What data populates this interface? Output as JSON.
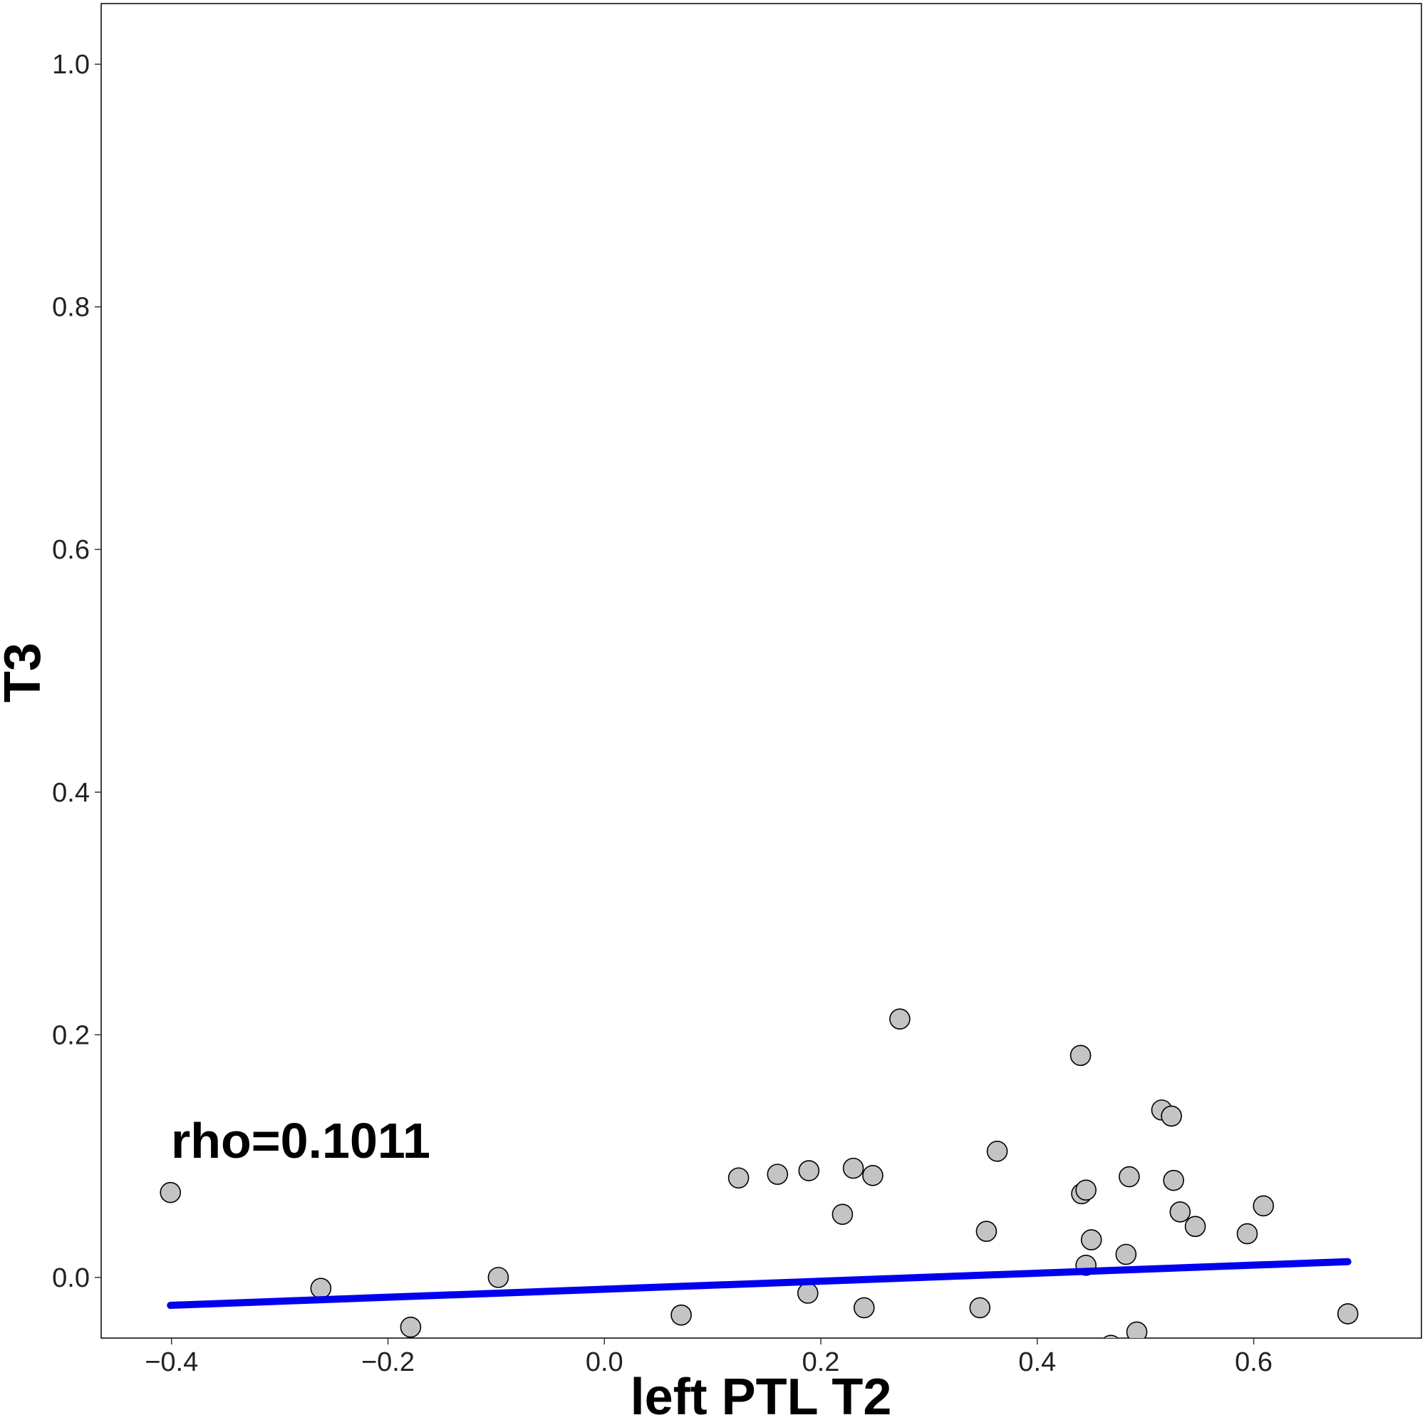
{
  "chart_data": {
    "type": "scatter",
    "title": "",
    "xlabel": "left PTL T2",
    "ylabel": "T3",
    "xlim": [
      -0.465,
      0.755
    ],
    "ylim": [
      -0.05,
      1.05
    ],
    "x_ticks": [
      -0.4,
      -0.2,
      0.0,
      0.2,
      0.4,
      0.6
    ],
    "x_tick_labels": [
      "−0.4",
      "−0.2",
      "0.0",
      "0.2",
      "0.4",
      "0.6"
    ],
    "y_ticks": [
      0.0,
      0.2,
      0.4,
      0.6,
      0.8,
      1.0
    ],
    "y_tick_labels": [
      "0.0",
      "0.2",
      "0.4",
      "0.6",
      "0.8",
      "1.0"
    ],
    "grid": false,
    "annotation": "rho=0.1011",
    "point_color": "#c4c4c4",
    "point_edge_color": "#000000",
    "line_color": "#0000ee",
    "points": [
      {
        "x": -0.401,
        "y": 0.07
      },
      {
        "x": -0.262,
        "y": -0.009
      },
      {
        "x": -0.179,
        "y": -0.041
      },
      {
        "x": -0.098,
        "y": 0.0
      },
      {
        "x": 0.071,
        "y": -0.031
      },
      {
        "x": 0.124,
        "y": 0.082
      },
      {
        "x": 0.16,
        "y": 0.085
      },
      {
        "x": 0.188,
        "y": -0.013
      },
      {
        "x": 0.189,
        "y": 0.088
      },
      {
        "x": 0.22,
        "y": 0.052
      },
      {
        "x": 0.23,
        "y": 0.09
      },
      {
        "x": 0.24,
        "y": -0.025
      },
      {
        "x": 0.248,
        "y": 0.084
      },
      {
        "x": 0.273,
        "y": 0.213
      },
      {
        "x": 0.347,
        "y": -0.025
      },
      {
        "x": 0.353,
        "y": 0.038
      },
      {
        "x": 0.363,
        "y": 0.104
      },
      {
        "x": 0.44,
        "y": 0.183
      },
      {
        "x": 0.441,
        "y": 0.069
      },
      {
        "x": 0.445,
        "y": 0.072
      },
      {
        "x": 0.445,
        "y": 0.01
      },
      {
        "x": 0.45,
        "y": 0.031
      },
      {
        "x": 0.468,
        "y": -0.056
      },
      {
        "x": 0.482,
        "y": 0.019
      },
      {
        "x": 0.485,
        "y": 0.083
      },
      {
        "x": 0.492,
        "y": -0.045
      },
      {
        "x": 0.515,
        "y": 0.138
      },
      {
        "x": 0.524,
        "y": 0.133
      },
      {
        "x": 0.526,
        "y": 0.08
      },
      {
        "x": 0.532,
        "y": 0.054
      },
      {
        "x": 0.546,
        "y": 0.042
      },
      {
        "x": 0.594,
        "y": 0.036
      },
      {
        "x": 0.609,
        "y": 0.059
      },
      {
        "x": 0.687,
        "y": -0.03
      }
    ],
    "fit_line": {
      "x": [
        -0.401,
        0.687
      ],
      "y": [
        -0.023,
        0.013
      ]
    }
  }
}
